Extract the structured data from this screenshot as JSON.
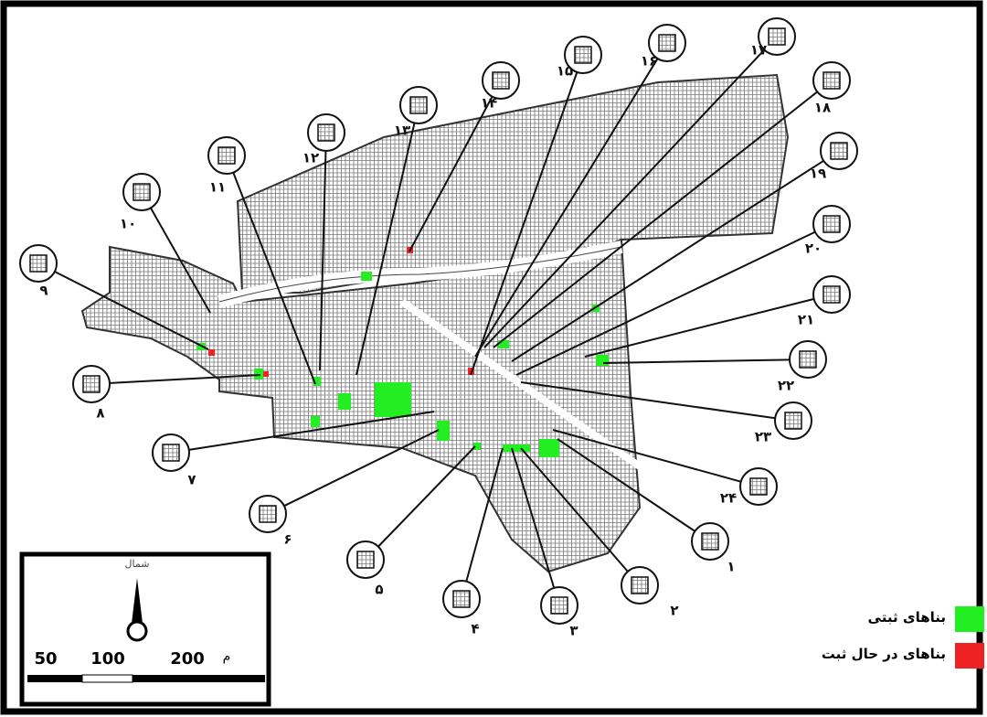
{
  "callouts": [
    {
      "label": "۱"
    },
    {
      "label": "۲"
    },
    {
      "label": "۳"
    },
    {
      "label": "۴"
    },
    {
      "label": "۵"
    },
    {
      "label": "۶"
    },
    {
      "label": "۷"
    },
    {
      "label": "۸"
    },
    {
      "label": "۹"
    },
    {
      "label": "۱۰"
    },
    {
      "label": "۱۱"
    },
    {
      "label": "۱۲"
    },
    {
      "label": "۱۳"
    },
    {
      "label": "۱۴"
    },
    {
      "label": "۱۵"
    },
    {
      "label": "۱۶"
    },
    {
      "label": "۱۷"
    },
    {
      "label": "۱۸"
    },
    {
      "label": "۱۹"
    },
    {
      "label": "۲۰"
    },
    {
      "label": "۲۱"
    },
    {
      "label": "۲۲"
    },
    {
      "label": "۲۳"
    },
    {
      "label": "۲۴"
    }
  ],
  "legend": [
    {
      "label": "بناهای ثبتی",
      "color": "#22ee22"
    },
    {
      "label": "بناهای در حال ثبت",
      "color": "#ee2222"
    }
  ],
  "north_label": "شمال",
  "scale": {
    "labels": [
      "50",
      "100",
      "200"
    ],
    "unit": "م"
  }
}
